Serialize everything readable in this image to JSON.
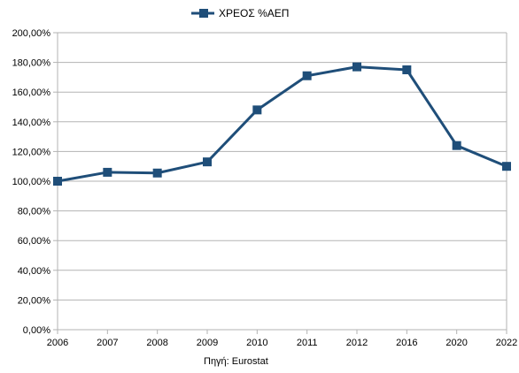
{
  "chart_data": {
    "type": "line",
    "categories": [
      "2006",
      "2007",
      "2008",
      "2009",
      "2010",
      "2011",
      "2012",
      "2016",
      "2020",
      "2022"
    ],
    "series": [
      {
        "name": "ΧΡΕΟΣ %ΑΕΠ",
        "values": [
          100.0,
          106.0,
          105.5,
          113.0,
          148.0,
          171.0,
          177.0,
          175.0,
          124.0,
          110.0
        ],
        "color": "#1f4e79",
        "marker": "square"
      }
    ],
    "ylim": [
      0,
      200
    ],
    "yticks": [
      0,
      20,
      40,
      60,
      80,
      100,
      120,
      140,
      160,
      180,
      200
    ],
    "ytick_labels": [
      "0,00%",
      "20,00%",
      "40,00%",
      "60,00%",
      "80,00%",
      "100,00%",
      "120,00%",
      "140,00%",
      "160,00%",
      "180,00%",
      "200,00%"
    ],
    "grid": true,
    "legend_position": "top-center",
    "source_note": "Πηγή: Eurostat",
    "grid_color": "#b3b3b3",
    "axis_color": "#b3b3b3"
  }
}
